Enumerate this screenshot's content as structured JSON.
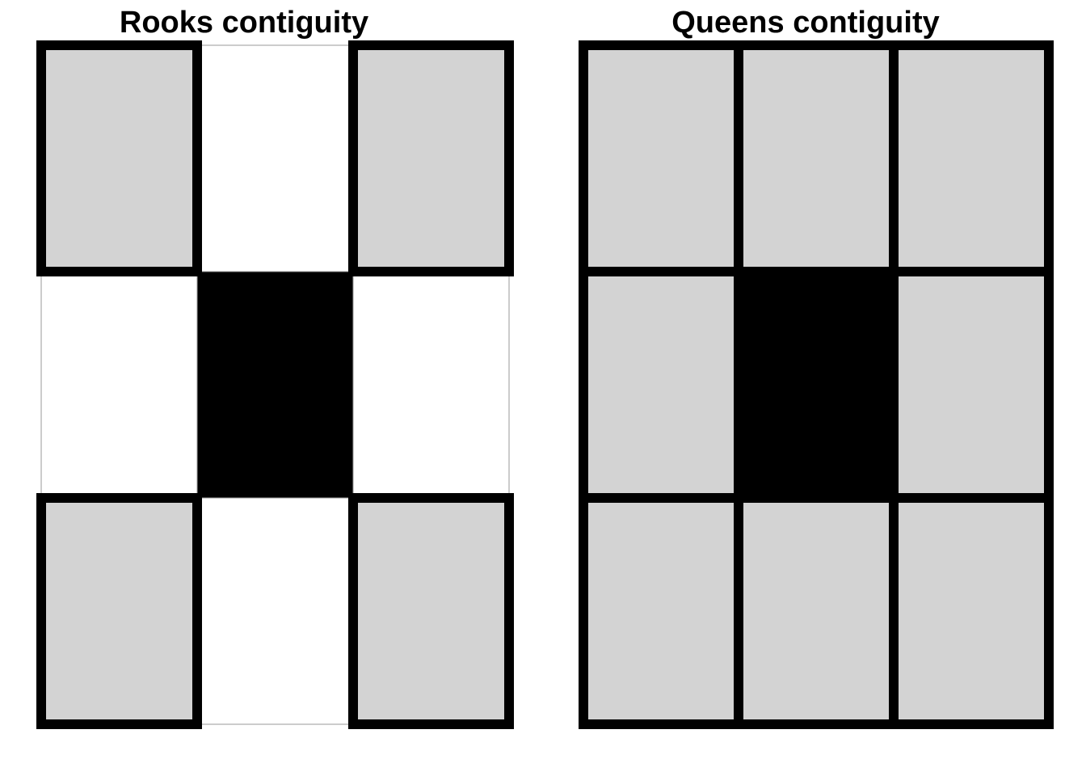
{
  "panels": [
    {
      "id": "rooks",
      "title": "Rooks contiguity",
      "rows": [
        [
          "neighbor",
          "none",
          "neighbor"
        ],
        [
          "none",
          "focal",
          "none"
        ],
        [
          "neighbor",
          "none",
          "neighbor"
        ]
      ]
    },
    {
      "id": "queens",
      "title": "Queens contiguity",
      "rows": [
        [
          "neighbor",
          "neighbor",
          "neighbor"
        ],
        [
          "neighbor",
          "focal",
          "neighbor"
        ],
        [
          "neighbor",
          "neighbor",
          "neighbor"
        ]
      ]
    }
  ],
  "colors": {
    "focal": "#000000",
    "neighbor": "#d3d3d3",
    "none": "#ffffff",
    "thick_border": "#000000",
    "thin_border": "#999999"
  }
}
